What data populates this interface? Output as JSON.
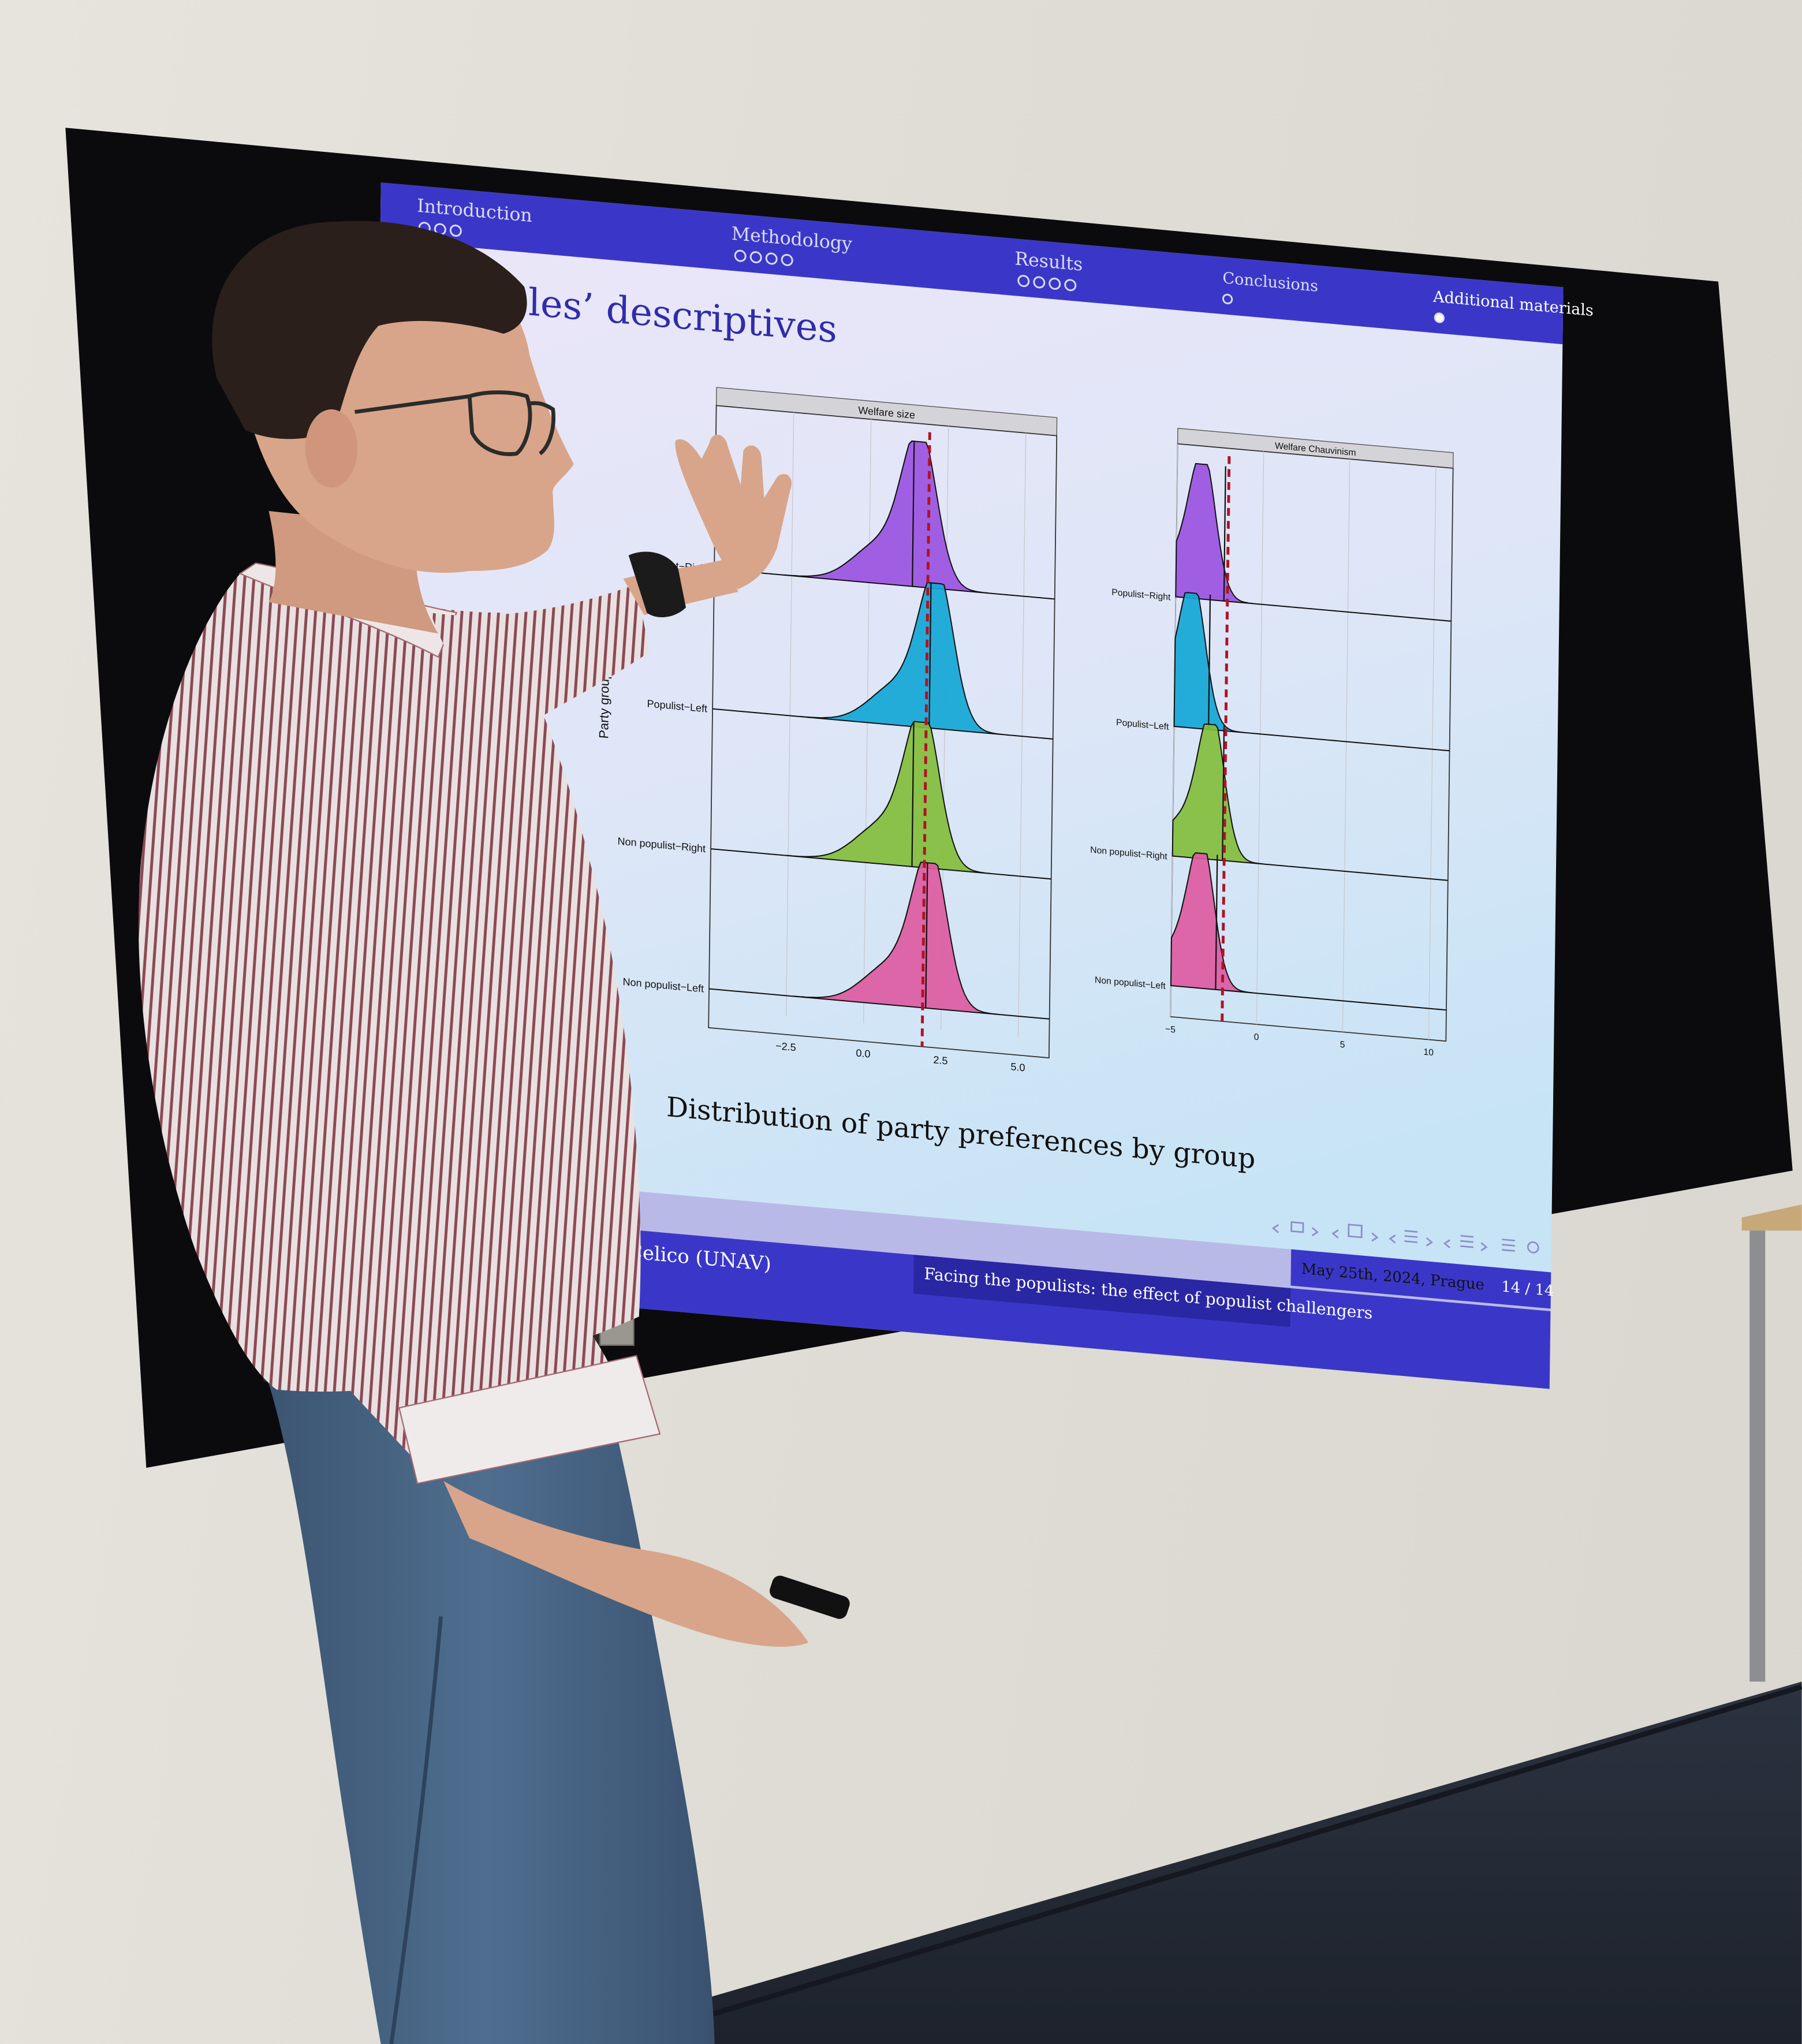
{
  "slide": {
    "nav_sections": [
      "Introduction",
      "Methodology",
      "Results",
      "Conclusions",
      "Additional materials"
    ],
    "title_partial": "bles’ descriptives",
    "caption": "Distribution of party preferences by group",
    "footer": {
      "author": "Celico  (UNAV)",
      "talk_title": "Facing the populists: the effect of populist challengers",
      "date_place": "May 25th, 2024, Prague",
      "page": "14 / 14"
    },
    "colors": {
      "beamer_blue": "#3a37c8",
      "purple": "#9a54e0",
      "cyan": "#14a7d6",
      "green": "#83be3c",
      "pink": "#dc5b9f",
      "mean_line": "#b01226"
    }
  },
  "chart_data": [
    {
      "type": "area",
      "title": "Welfare size",
      "ylabel": "Party groups",
      "categories": [
        "Non populist−Left",
        "Non populist−Right",
        "Populist−Left",
        "Populist−Right"
      ],
      "x_ticks": [
        "−2.5",
        "0.0",
        "2.5",
        "5.0"
      ],
      "xlim": [
        -5,
        6
      ],
      "series": [
        {
          "name": "Populist−Right",
          "color": "#9a54e0",
          "mode": 1.6,
          "mean": 1.4
        },
        {
          "name": "Populist−Left",
          "color": "#14a7d6",
          "mode": 2.2,
          "mean": 2.0
        },
        {
          "name": "Non populist−Right",
          "color": "#83be3c",
          "mode": 1.8,
          "mean": 1.5
        },
        {
          "name": "Non populist−Left",
          "color": "#dc5b9f",
          "mode": 2.1,
          "mean": 2.0
        }
      ],
      "overall_mean": 1.9
    },
    {
      "type": "area",
      "title": "Welfare Chauvinism",
      "categories": [
        "Non populist−Left",
        "Non populist−Right",
        "Populist−Left",
        "Populist−Right"
      ],
      "x_ticks": [
        "−5",
        "0",
        "5",
        "10"
      ],
      "xlim": [
        -5,
        11
      ],
      "series": [
        {
          "name": "Populist−Right",
          "color": "#9a54e0",
          "mode": -3.5,
          "mean": -2.2
        },
        {
          "name": "Populist−Left",
          "color": "#14a7d6",
          "mode": -4.0,
          "mean": -3.0
        },
        {
          "name": "Non populist−Right",
          "color": "#83be3c",
          "mode": -2.8,
          "mean": -2.1
        },
        {
          "name": "Non populist−Left",
          "color": "#dc5b9f",
          "mode": -3.3,
          "mean": -2.4
        }
      ],
      "overall_mean": -2.0
    }
  ]
}
